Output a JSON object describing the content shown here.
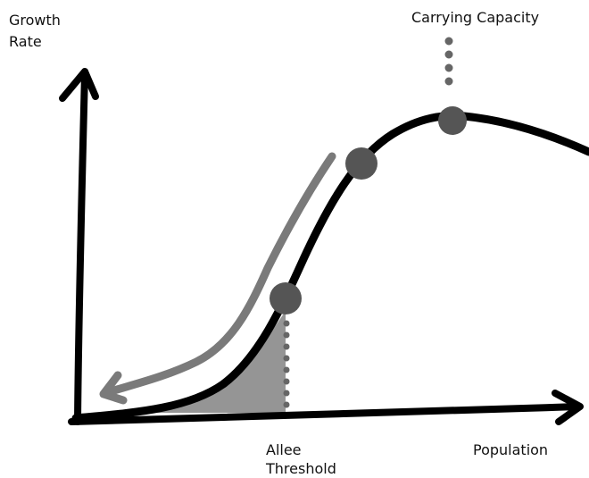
{
  "labels": {
    "y_axis": [
      "Growth",
      "Rate"
    ],
    "carrying_capacity": "Carrying Capacity",
    "allee_threshold": [
      "Allee",
      "Threshold"
    ],
    "x_axis": "Population"
  }
}
